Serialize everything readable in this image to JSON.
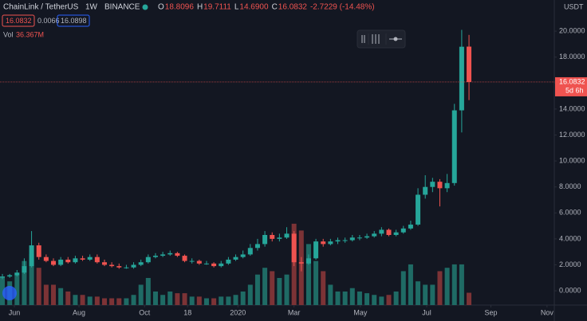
{
  "chart_data": {
    "type": "candlestick",
    "symbol": "ChainLink / TetherUS",
    "interval": "1W",
    "exchange": "BINANCE",
    "ohlc_labels": [
      {
        "key": "O",
        "value": "18.8096"
      },
      {
        "key": "H",
        "value": "19.7111"
      },
      {
        "key": "L",
        "value": "14.6900"
      },
      {
        "key": "C",
        "value": "16.0832"
      }
    ],
    "change": "-2.7229 (-14.48%)",
    "badges": [
      "16.0832",
      "0.0066",
      "16.0898"
    ],
    "volume_label": "Vol",
    "volume_value": "36.367M",
    "currency": "USDT",
    "last_price_label": "16.0832",
    "countdown": "5d 6h",
    "up_color": "#26a69a",
    "down_color": "#ef5350",
    "volume_up_color": "#1f6b65",
    "volume_down_color": "#7c3336",
    "candles": {
      "open": [
        1.0,
        1.1,
        1.2,
        1.4,
        1.9,
        3.5,
        2.6,
        2.3,
        2.0,
        2.4,
        2.2,
        2.5,
        2.4,
        2.6,
        2.2,
        2.0,
        1.9,
        1.8,
        1.8,
        2.0,
        2.2,
        2.6,
        2.7,
        2.8,
        2.9,
        2.7,
        2.3,
        2.3,
        2.1,
        2.1,
        1.9,
        2.1,
        2.4,
        2.6,
        2.8,
        3.3,
        3.6,
        4.3,
        4.0,
        4.1,
        4.4,
        2.2,
        2.1,
        2.5,
        3.8,
        3.6,
        3.8,
        3.9,
        3.9,
        4.1,
        4.1,
        4.2,
        4.4,
        4.7,
        4.3,
        4.5,
        4.8,
        5.1,
        7.4,
        8.0,
        8.4,
        7.9,
        8.3,
        13.9,
        18.8096
      ],
      "close": [
        1.1,
        1.2,
        1.4,
        1.9,
        3.5,
        2.6,
        2.3,
        2.0,
        2.4,
        2.2,
        2.5,
        2.4,
        2.6,
        2.2,
        2.0,
        1.9,
        1.8,
        1.8,
        2.0,
        2.2,
        2.6,
        2.7,
        2.8,
        2.9,
        2.7,
        2.3,
        2.3,
        2.1,
        2.1,
        1.9,
        2.1,
        2.4,
        2.6,
        2.8,
        3.3,
        3.6,
        4.3,
        4.0,
        4.1,
        4.4,
        2.2,
        2.1,
        2.5,
        3.8,
        3.6,
        3.8,
        3.9,
        3.9,
        4.1,
        4.1,
        4.2,
        4.4,
        4.7,
        4.3,
        4.5,
        4.8,
        5.1,
        7.4,
        8.0,
        8.4,
        7.9,
        8.3,
        13.9,
        18.8,
        16.0832
      ],
      "high": [
        1.3,
        1.3,
        1.6,
        2.5,
        4.6,
        3.7,
        2.8,
        2.5,
        2.6,
        2.6,
        2.7,
        2.7,
        2.8,
        2.8,
        2.4,
        2.2,
        2.1,
        2.0,
        2.2,
        2.4,
        2.8,
        2.9,
        3.0,
        3.1,
        3.0,
        2.8,
        2.5,
        2.4,
        2.3,
        2.2,
        2.3,
        2.6,
        2.8,
        3.1,
        3.6,
        4.0,
        4.6,
        4.5,
        4.4,
        4.9,
        4.6,
        2.6,
        2.8,
        4.0,
        4.0,
        4.0,
        4.1,
        4.1,
        4.3,
        4.3,
        4.4,
        4.6,
        4.9,
        4.8,
        4.7,
        5.0,
        5.4,
        7.9,
        8.9,
        8.7,
        8.6,
        9.0,
        14.4,
        20.1,
        19.7111
      ],
      "low": [
        0.9,
        1.0,
        1.1,
        1.3,
        1.8,
        2.4,
        2.2,
        1.9,
        1.9,
        2.1,
        2.1,
        2.3,
        2.3,
        2.1,
        1.9,
        1.8,
        1.7,
        1.7,
        1.7,
        1.9,
        2.1,
        2.5,
        2.6,
        2.7,
        2.6,
        2.2,
        2.1,
        2.0,
        2.0,
        1.8,
        1.8,
        2.0,
        2.3,
        2.5,
        2.7,
        3.1,
        3.4,
        3.8,
        3.8,
        4.0,
        1.9,
        1.5,
        2.0,
        2.4,
        3.4,
        3.5,
        3.6,
        3.7,
        3.8,
        3.9,
        4.0,
        4.1,
        4.2,
        4.2,
        4.2,
        4.4,
        4.7,
        5.0,
        7.1,
        7.6,
        6.5,
        7.6,
        8.1,
        12.2,
        14.69
      ]
    },
    "volume": [
      80,
      70,
      90,
      130,
      150,
      110,
      60,
      60,
      50,
      40,
      30,
      30,
      25,
      25,
      20,
      20,
      20,
      20,
      30,
      60,
      80,
      40,
      30,
      40,
      35,
      35,
      25,
      25,
      20,
      20,
      25,
      25,
      30,
      40,
      60,
      90,
      110,
      100,
      80,
      90,
      240,
      220,
      180,
      130,
      100,
      60,
      40,
      40,
      50,
      40,
      35,
      30,
      25,
      30,
      40,
      100,
      120,
      70,
      60,
      60,
      100,
      110,
      120,
      120,
      36.367
    ],
    "vol_ylim": [
      0,
      900
    ],
    "xlim": [
      -0.33,
      75.7
    ],
    "xticks": [
      {
        "value": 1.64,
        "label": "Jun"
      },
      {
        "value": 10.5,
        "label": "Aug"
      },
      {
        "value": 19.5,
        "label": "Oct"
      },
      {
        "value": 25.4,
        "label": "18"
      },
      {
        "value": 32.3,
        "label": "2020"
      },
      {
        "value": 40,
        "label": "Mar"
      },
      {
        "value": 49.1,
        "label": "May"
      },
      {
        "value": 58.2,
        "label": "Jul"
      },
      {
        "value": 67,
        "label": "Sep"
      },
      {
        "value": 74.7,
        "label": "Nov"
      }
    ],
    "ylim": [
      -1.1,
      22.4
    ],
    "yticks": [
      {
        "value": 0,
        "label": "0.0000"
      },
      {
        "value": 2,
        "label": "2.0000"
      },
      {
        "value": 4,
        "label": "4.0000"
      },
      {
        "value": 6,
        "label": "6.0000"
      },
      {
        "value": 8,
        "label": "8.0000"
      },
      {
        "value": 10,
        "label": "10.0000"
      },
      {
        "value": 12,
        "label": "12.0000"
      },
      {
        "value": 14,
        "label": "14.0000"
      },
      {
        "value": 16,
        "label": "16.0000"
      },
      {
        "value": 18,
        "label": "18.0000"
      },
      {
        "value": 20,
        "label": "20.0000"
      }
    ],
    "grid": false
  }
}
